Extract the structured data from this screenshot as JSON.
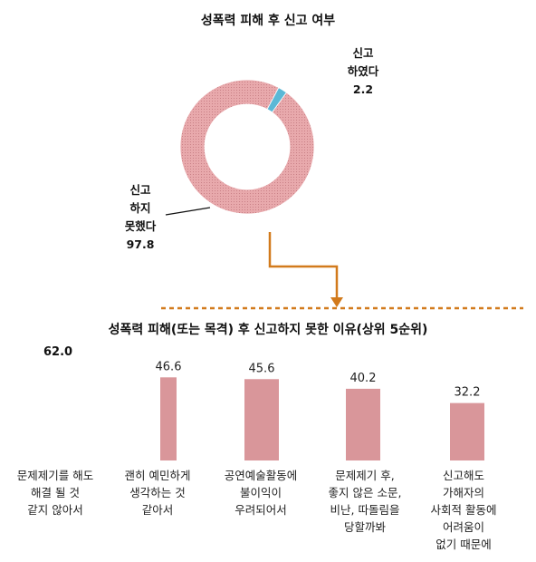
{
  "chart_data": [
    {
      "type": "pie",
      "title": "성폭력 피해 후 신고 여부",
      "slices": [
        {
          "label_lines": [
            "신고",
            "하였다"
          ],
          "value": 2.2,
          "value_text": "2.2",
          "color": "#5bb8d6"
        },
        {
          "label_lines": [
            "신고",
            "하지",
            "못했다"
          ],
          "value": 97.8,
          "value_text": "97.8",
          "color": "#df9fa2"
        }
      ]
    },
    {
      "type": "bar",
      "title": "성폭력 피해(또는 목격) 후 신고하지 못한 이유(상위 5순위)",
      "ylim": [
        0,
        62.0
      ],
      "ymax_label": "62.0",
      "categories": [
        [
          "문제제기를 해도",
          "해결 될 것",
          "같지 않아서"
        ],
        [
          "괜히 예민하게",
          "생각하는 것",
          "같아서"
        ],
        [
          "공연예술활동에",
          "불이익이",
          "우려되어서"
        ],
        [
          "문제제기 후,",
          "좋지 않은 소문,",
          "비난, 따돌림을",
          "당할까봐"
        ],
        [
          "신고해도",
          "가해자의",
          "사회적 활동에",
          "어려움이",
          "없기 때문에"
        ]
      ],
      "values": [
        62.0,
        46.6,
        45.6,
        40.2,
        32.2
      ],
      "value_labels": [
        "",
        "46.6",
        "45.6",
        "40.2",
        "32.2"
      ],
      "color": "#d9969a"
    }
  ],
  "connector_color": "#d27a1c"
}
